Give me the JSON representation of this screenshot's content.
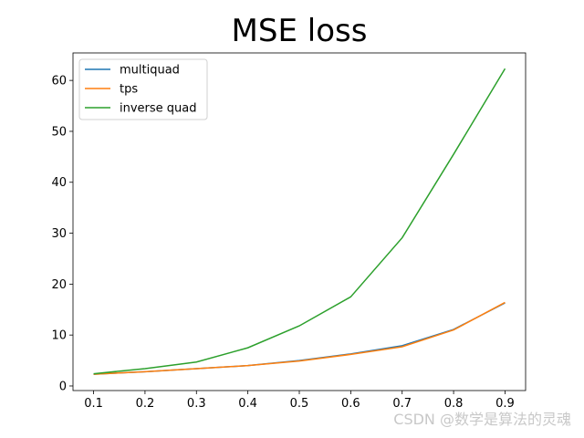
{
  "chart_data": {
    "type": "line",
    "title": "MSE loss",
    "xlabel": "",
    "ylabel": "",
    "x": [
      0.1,
      0.2,
      0.3,
      0.4,
      0.5,
      0.6,
      0.7,
      0.8,
      0.9
    ],
    "xlim": [
      0.06,
      0.94
    ],
    "ylim": [
      -0.9,
      65.4
    ],
    "xticks": [
      "0.1",
      "0.2",
      "0.3",
      "0.4",
      "0.5",
      "0.6",
      "0.7",
      "0.8",
      "0.9"
    ],
    "yticks": [
      "0",
      "10",
      "20",
      "30",
      "40",
      "50",
      "60"
    ],
    "ytick_values": [
      0,
      10,
      20,
      30,
      40,
      50,
      60
    ],
    "grid": false,
    "legend_position": "top-left",
    "series": [
      {
        "name": "multiquad",
        "color": "#1f77b4",
        "values": [
          2.3,
          2.8,
          3.4,
          4.0,
          5.0,
          6.3,
          7.9,
          11.1,
          16.3
        ]
      },
      {
        "name": "tps",
        "color": "#ff7f0e",
        "values": [
          2.3,
          2.8,
          3.4,
          4.0,
          4.9,
          6.2,
          7.7,
          11.0,
          16.4
        ]
      },
      {
        "name": "inverse quad",
        "color": "#2ca02c",
        "values": [
          2.4,
          3.4,
          4.7,
          7.5,
          11.8,
          17.5,
          29.1,
          45.5,
          62.3
        ]
      }
    ]
  },
  "watermark": "CSDN @数学是算法的灵魂"
}
